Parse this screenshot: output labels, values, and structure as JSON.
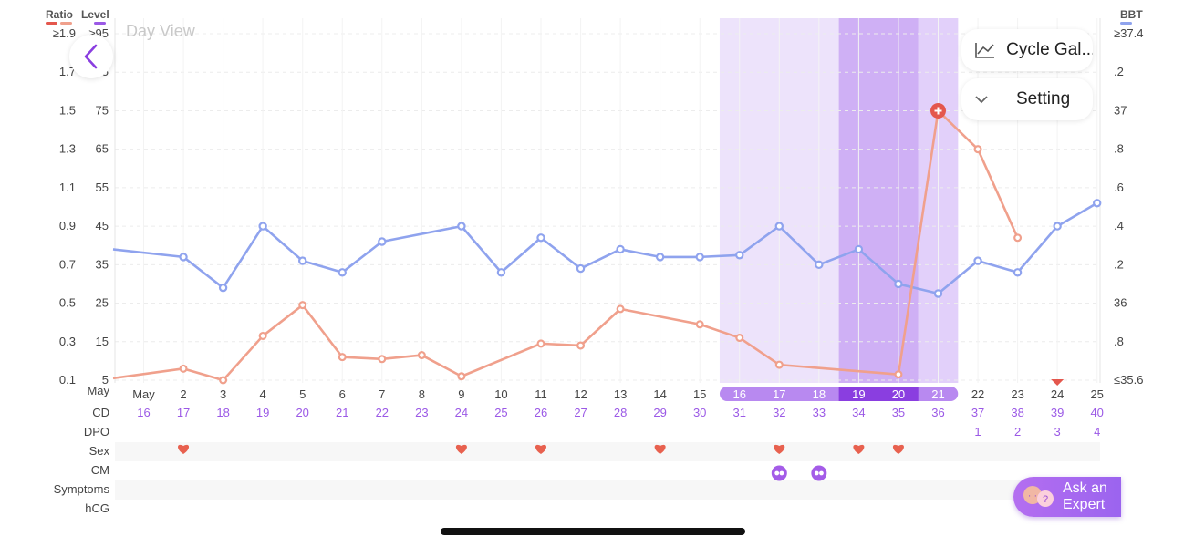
{
  "header": {
    "ratio_label": "Ratio",
    "level_label": "Level",
    "bbt_label": "BBT",
    "title": "Day View"
  },
  "buttons": {
    "cycle_gallery": "Cycle Gal...",
    "setting": "Setting",
    "ask_line1": "Ask an",
    "ask_line2": "Expert"
  },
  "colors": {
    "ratio": "#e4574d",
    "level": "#9b59e6",
    "bbt": "#8fa3ee",
    "lh_line": "#f0a08c",
    "fertile_light": "#ede3fb",
    "fertile_mid": "#e2d0fa",
    "fertile_dark": "#cfb0f5",
    "accent_purple": "#8a3ee0",
    "heart": "#e8614f"
  },
  "chart_data": {
    "type": "line",
    "left_axis_ratio_ticks": [
      "≥1.9",
      "1.7",
      "1.5",
      "1.3",
      "1.1",
      "0.9",
      "0.7",
      "0.5",
      "0.3",
      "0.1"
    ],
    "left_axis_level_ticks": [
      "≥95",
      "85",
      "75",
      "65",
      "55",
      "45",
      "35",
      "25",
      "15",
      "5"
    ],
    "right_axis_bbt_ticks": [
      "≥37.4",
      ".2",
      "37",
      ".8",
      ".6",
      ".4",
      ".2",
      "36",
      ".8",
      "≤35.6"
    ],
    "ylim_level": [
      5,
      95
    ],
    "ylim_bbt": [
      35.6,
      37.4
    ],
    "x_month": "May",
    "x_labels": [
      "May",
      "2",
      "3",
      "4",
      "5",
      "6",
      "7",
      "8",
      "9",
      "10",
      "11",
      "12",
      "13",
      "14",
      "15",
      "16",
      "17",
      "18",
      "19",
      "20",
      "21",
      "22",
      "23",
      "24",
      "25"
    ],
    "cd": [
      "16",
      "17",
      "18",
      "19",
      "20",
      "21",
      "22",
      "23",
      "24",
      "25",
      "26",
      "27",
      "28",
      "29",
      "30",
      "31",
      "32",
      "33",
      "34",
      "35",
      "36",
      "37",
      "38",
      "39",
      "40"
    ],
    "dpo": [
      "",
      "",
      "",
      "",
      "",
      "",
      "",
      "",
      "",
      "",
      "",
      "",
      "",
      "",
      "",
      "",
      "",
      "",
      "",
      "",
      "",
      "1",
      "2",
      "3",
      "4"
    ],
    "row_labels": [
      "May",
      "CD",
      "DPO",
      "Sex",
      "CM",
      "Symptoms",
      "hCG"
    ],
    "fertile_window": [
      "16",
      "17",
      "18",
      "19",
      "20",
      "21"
    ],
    "peak_days": [
      "19",
      "20"
    ],
    "series": [
      {
        "unit": "BBT",
        "x": [
          0.5,
          1,
          2,
          3,
          4,
          5,
          6,
          8,
          9,
          10,
          11,
          12,
          13,
          14,
          15,
          16,
          17,
          18,
          19,
          20,
          21,
          22,
          23,
          24
        ],
        "values": [
          36.28,
          36.24,
          36.08,
          36.4,
          36.22,
          36.16,
          36.32,
          36.4,
          36.16,
          36.34,
          36.18,
          36.28,
          36.24,
          36.24,
          36.25,
          36.4,
          36.2,
          36.28,
          36.1,
          36.05,
          36.22,
          36.16,
          36.4,
          36.52
        ],
        "valid_from": 0
      },
      {
        "unit": "LH Level",
        "x": [
          0.5,
          1,
          2,
          3,
          4,
          5,
          6,
          7,
          8,
          10,
          11,
          12,
          14,
          15,
          16,
          19,
          20,
          21,
          22
        ],
        "values": [
          5.5,
          8,
          5,
          16.5,
          24.5,
          11,
          10.5,
          11.5,
          6,
          14.5,
          14,
          23.5,
          19.5,
          16,
          9,
          6.5,
          75,
          65,
          42
        ],
        "peak_x": 20
      }
    ],
    "sex_days": [
      "2",
      "9",
      "11",
      "14",
      "17",
      "19",
      "20"
    ],
    "cm_days": [
      "17",
      "18"
    ],
    "marker_day": "24"
  }
}
